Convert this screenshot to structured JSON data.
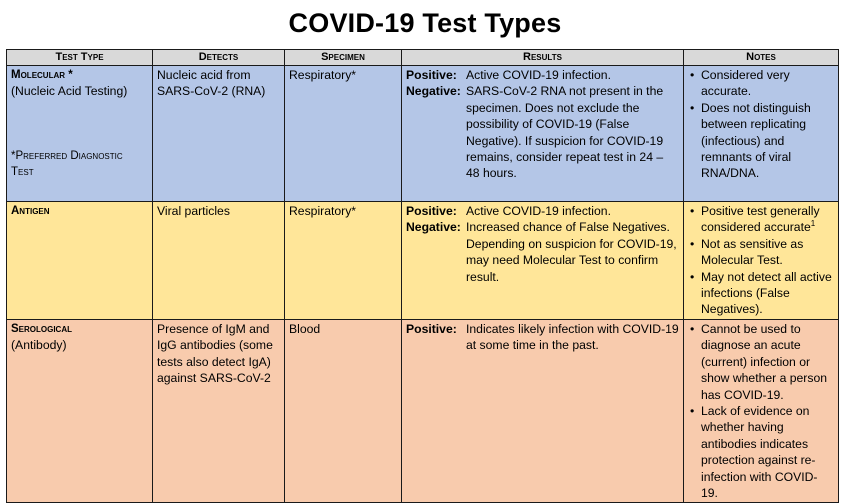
{
  "title": "COVID-19 Test Types",
  "headers": [
    "Test Type",
    "Detects",
    "Specimen",
    "Results",
    "Notes"
  ],
  "rows": [
    {
      "type_name": "Molecular *",
      "type_sub": "(Nucleic Acid Testing)",
      "type_note_line1": "*Preferred Diagnostic",
      "type_note_line2": "Test",
      "detects": "Nucleic acid from SARS-CoV-2 (RNA)",
      "specimen": "Respiratory*",
      "results": [
        {
          "label": "Positive:",
          "text": "Active COVID-19 infection."
        },
        {
          "label": "Negative:",
          "text": "SARS-CoV-2 RNA not present in the specimen. Does not exclude the possibility of COVID-19 (False Negative). If suspicion for COVID-19 remains, consider repeat test in 24 – 48 hours."
        }
      ],
      "notes": [
        "Considered very accurate.",
        "Does not distinguish between replicating (infectious) and remnants of viral RNA/DNA."
      ]
    },
    {
      "type_name": "Antigen",
      "detects": "Viral particles",
      "specimen": "Respiratory*",
      "results": [
        {
          "label": "Positive:",
          "text": "Active COVID-19 infection."
        },
        {
          "label": "Negative:",
          "text": "Increased chance of False Negatives. Depending on suspicion for COVID-19, may need Molecular Test to confirm result."
        }
      ],
      "notes": [
        "Positive test generally considered accurate",
        "Not as sensitive as Molecular Test.",
        "May not detect all active infections (False Negatives)."
      ],
      "note_superscript": "1"
    },
    {
      "type_name": "Serological",
      "type_sub": "(Antibody)",
      "detects": "Presence of IgM and IgG antibodies (some tests also detect IgA) against SARS-CoV-2",
      "specimen": "Blood",
      "results": [
        {
          "label": "Positive:",
          "text": "Indicates likely infection with COVID-19 at some time in the past."
        }
      ],
      "notes": [
        "Cannot be used to diagnose an acute (current) infection or show whether a person has COVID-19.",
        "Lack of evidence on whether having antibodies indicates protection against re-infection with COVID-19."
      ]
    }
  ],
  "colors": {
    "header": "#d9d9d9",
    "molecular": "#b4c6e7",
    "antigen": "#ffe699",
    "serological": "#f8cbad"
  }
}
